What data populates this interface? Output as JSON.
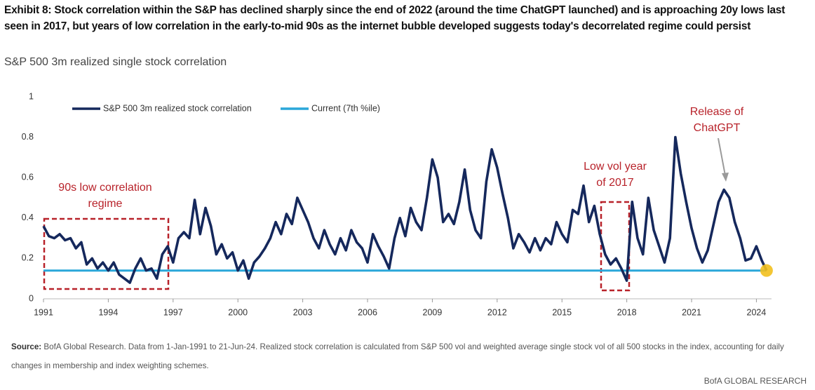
{
  "chart_data": {
    "type": "line",
    "title": "Exhibit 8: Stock correlation within the S&P has declined sharply since the end of 2022 (around the time ChatGPT launched) and is approaching 20y lows last seen in 2017, but years of low correlation in the early-to-mid 90s as the internet bubble developed suggests today's decorrelated regime could persist",
    "subtitle": "S&P 500 3m realized single stock correlation",
    "xlim": [
      1991,
      2024.7
    ],
    "xticks": [
      1991,
      1994,
      1997,
      2000,
      2003,
      2006,
      2009,
      2012,
      2015,
      2018,
      2021,
      2024
    ],
    "ylim": [
      0,
      1
    ],
    "yticks": [
      0,
      0.2,
      0.4,
      0.6,
      0.8,
      1
    ],
    "grid": false,
    "legend": "upper left",
    "end_marker_color": "#f2c01e",
    "series": [
      {
        "name": "S&P 500 3m realized stock correlation",
        "color": "#15285c",
        "x": [
          1991,
          1991.25,
          1991.5,
          1991.75,
          1992,
          1992.25,
          1992.5,
          1992.75,
          1993,
          1993.25,
          1993.5,
          1993.75,
          1994,
          1994.25,
          1994.5,
          1994.75,
          1995,
          1995.25,
          1995.5,
          1995.75,
          1996,
          1996.25,
          1996.5,
          1996.75,
          1997,
          1997.25,
          1997.5,
          1997.75,
          1998,
          1998.25,
          1998.5,
          1998.75,
          1999,
          1999.25,
          1999.5,
          1999.75,
          2000,
          2000.25,
          2000.5,
          2000.75,
          2001,
          2001.25,
          2001.5,
          2001.75,
          2002,
          2002.25,
          2002.5,
          2002.75,
          2003,
          2003.25,
          2003.5,
          2003.75,
          2004,
          2004.25,
          2004.5,
          2004.75,
          2005,
          2005.25,
          2005.5,
          2005.75,
          2006,
          2006.25,
          2006.5,
          2006.75,
          2007,
          2007.25,
          2007.5,
          2007.75,
          2008,
          2008.25,
          2008.5,
          2008.75,
          2009,
          2009.25,
          2009.5,
          2009.75,
          2010,
          2010.25,
          2010.5,
          2010.75,
          2011,
          2011.25,
          2011.5,
          2011.75,
          2012,
          2012.25,
          2012.5,
          2012.75,
          2013,
          2013.25,
          2013.5,
          2013.75,
          2014,
          2014.25,
          2014.5,
          2014.75,
          2015,
          2015.25,
          2015.5,
          2015.75,
          2016,
          2016.25,
          2016.5,
          2016.75,
          2017,
          2017.25,
          2017.5,
          2017.75,
          2018,
          2018.25,
          2018.5,
          2018.75,
          2019,
          2019.25,
          2019.5,
          2019.75,
          2020,
          2020.25,
          2020.5,
          2020.75,
          2021,
          2021.25,
          2021.5,
          2021.75,
          2022,
          2022.25,
          2022.5,
          2022.75,
          2023,
          2023.25,
          2023.5,
          2023.75,
          2024,
          2024.25,
          2024.47
        ],
        "values": [
          0.36,
          0.31,
          0.3,
          0.32,
          0.29,
          0.3,
          0.25,
          0.28,
          0.17,
          0.2,
          0.15,
          0.18,
          0.14,
          0.18,
          0.12,
          0.1,
          0.08,
          0.15,
          0.2,
          0.14,
          0.15,
          0.1,
          0.22,
          0.26,
          0.18,
          0.3,
          0.33,
          0.3,
          0.49,
          0.32,
          0.45,
          0.36,
          0.22,
          0.27,
          0.2,
          0.23,
          0.14,
          0.19,
          0.1,
          0.18,
          0.21,
          0.25,
          0.3,
          0.38,
          0.32,
          0.42,
          0.37,
          0.5,
          0.44,
          0.38,
          0.3,
          0.25,
          0.34,
          0.27,
          0.22,
          0.3,
          0.24,
          0.34,
          0.28,
          0.25,
          0.18,
          0.32,
          0.26,
          0.21,
          0.15,
          0.3,
          0.4,
          0.31,
          0.45,
          0.38,
          0.34,
          0.5,
          0.69,
          0.6,
          0.38,
          0.42,
          0.37,
          0.48,
          0.64,
          0.44,
          0.34,
          0.3,
          0.58,
          0.74,
          0.65,
          0.52,
          0.4,
          0.25,
          0.32,
          0.28,
          0.23,
          0.3,
          0.24,
          0.3,
          0.27,
          0.38,
          0.32,
          0.28,
          0.44,
          0.42,
          0.56,
          0.38,
          0.46,
          0.32,
          0.22,
          0.17,
          0.2,
          0.15,
          0.09,
          0.48,
          0.3,
          0.22,
          0.5,
          0.34,
          0.26,
          0.18,
          0.3,
          0.8,
          0.62,
          0.48,
          0.35,
          0.25,
          0.18,
          0.24,
          0.36,
          0.48,
          0.54,
          0.5,
          0.38,
          0.3,
          0.19,
          0.2,
          0.26,
          0.19,
          0.14
        ]
      },
      {
        "name": "Current (7th %ile)",
        "color": "#2aa7d9",
        "x": [
          1991,
          2024.47
        ],
        "values": [
          0.14,
          0.14
        ]
      }
    ],
    "annotations": [
      {
        "lines": [
          "90s low correlation",
          "regime"
        ]
      },
      {
        "lines": [
          "Low vol year",
          "of 2017"
        ]
      },
      {
        "lines": [
          "Release of",
          "ChatGPT"
        ]
      }
    ],
    "source": {
      "label": "Source:",
      "text": "BofA Global Research. Data from 1-Jan-1991 to 21-Jun-24. Realized stock correlation is calculated from S&P 500 vol and weighted average single stock vol of all 500 stocks in the index, accounting for daily changes in membership and index weighting schemes."
    },
    "brand": "BofA GLOBAL RESEARCH"
  }
}
